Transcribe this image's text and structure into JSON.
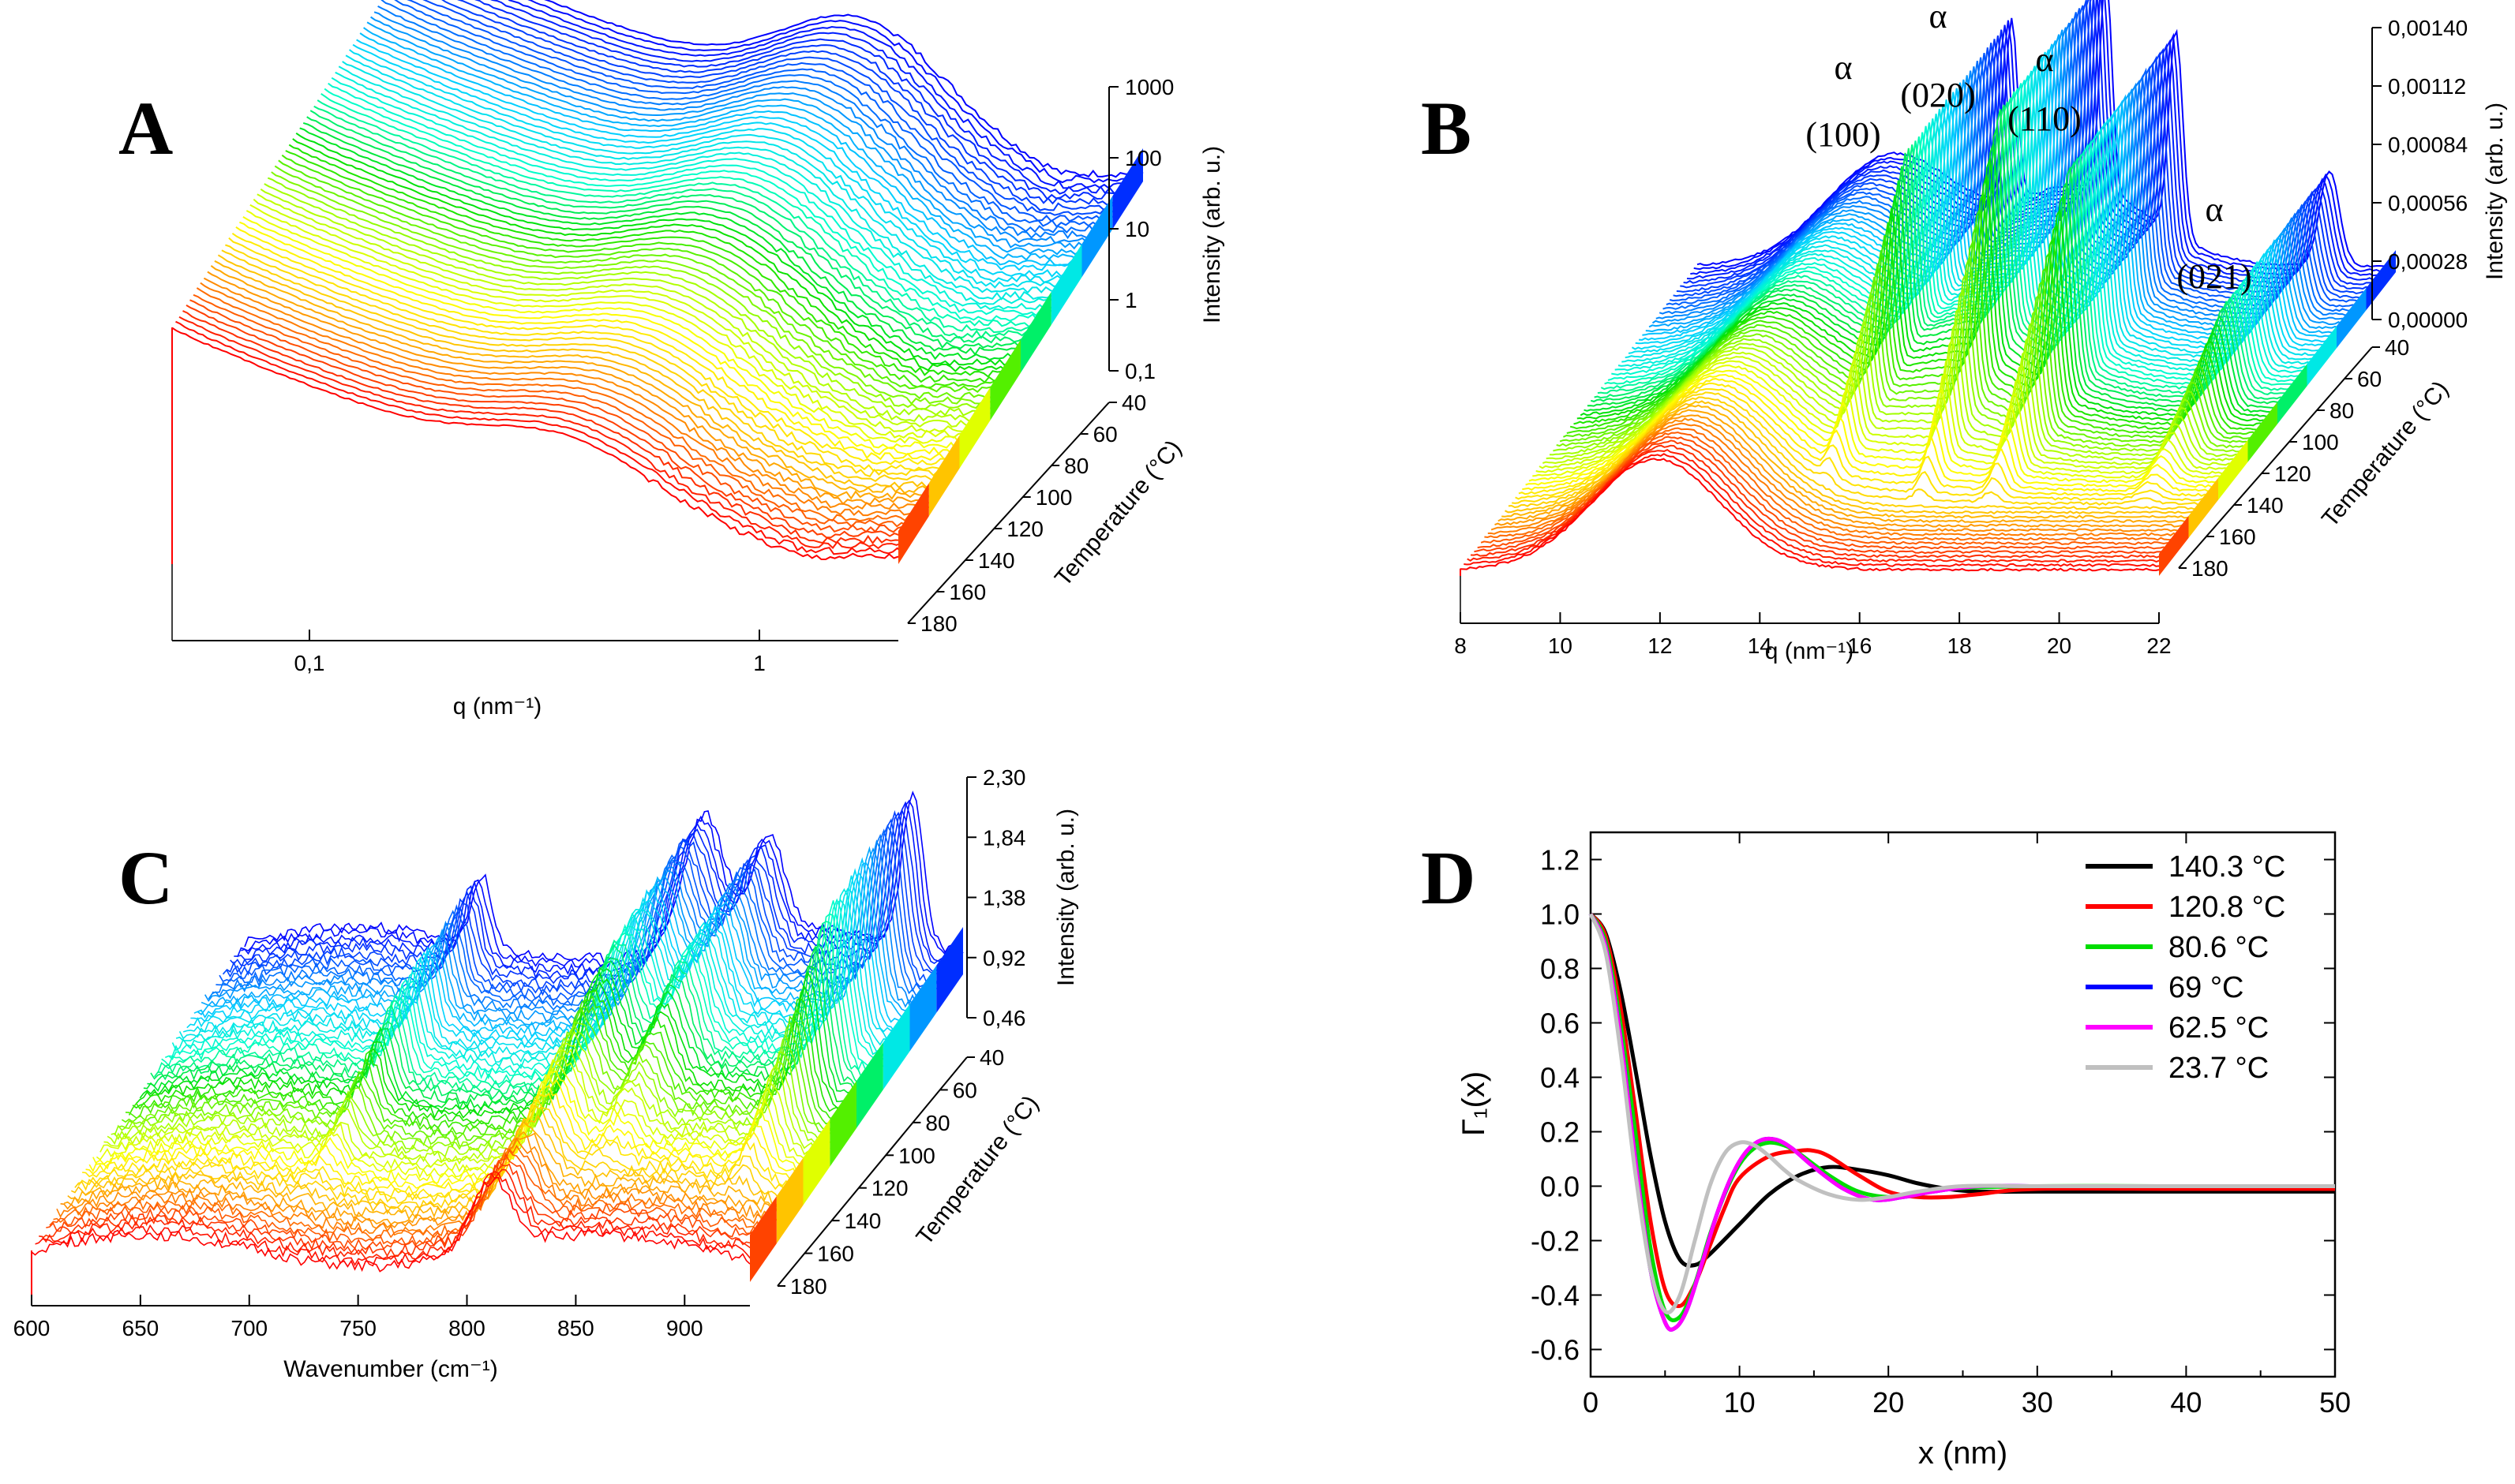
{
  "chart_data": [
    {
      "panel": "A",
      "type": "line",
      "title": "",
      "xlabel": "q (nm⁻¹)",
      "x_scale": "log",
      "x_ticks": [
        "0,1",
        "1"
      ],
      "zlabel": "Intensity (arb. u.)",
      "z_scale": "log",
      "z_ticks": [
        "0,1",
        "1",
        "10",
        "100",
        "1000"
      ],
      "ylabel": "Temperature (°C)",
      "y_ticks": [
        "40",
        "60",
        "80",
        "100",
        "120",
        "140",
        "160",
        "180"
      ],
      "temperature_range": [
        40,
        190
      ],
      "series_colors": [
        "#ff0000",
        "#ff8000",
        "#ffd200",
        "#ffff00",
        "#00e000",
        "#00ffff",
        "#00b4ff",
        "#0000ff"
      ]
    },
    {
      "panel": "B",
      "type": "line",
      "title": "",
      "xlabel": "q (nm⁻¹)",
      "x": [
        8,
        10,
        12,
        14,
        16,
        18,
        20,
        22
      ],
      "xlim": [
        8,
        22
      ],
      "zlabel": "Intensity (arb. u.)",
      "z_ticks": [
        "0,00000",
        "0,00028",
        "0,00056",
        "0,00084",
        "0,00112",
        "0,00140"
      ],
      "ylabel": "Temperature (°C)",
      "y_ticks": [
        "40",
        "60",
        "80",
        "100",
        "120",
        "140",
        "160",
        "180"
      ],
      "annotations": [
        {
          "greek": "α",
          "label": "(100)",
          "q": 15.0
        },
        {
          "greek": "α",
          "label": "(020)",
          "q": 17.0
        },
        {
          "greek": "α",
          "label": "(110)",
          "q": 18.5
        },
        {
          "greek": "α",
          "label": "(021)",
          "q": 21.0
        }
      ]
    },
    {
      "panel": "C",
      "type": "line",
      "title": "",
      "xlabel": "Wavenumber (cm⁻¹)",
      "x_ticks": [
        "600",
        "650",
        "700",
        "750",
        "800",
        "850",
        "900"
      ],
      "xlim": [
        600,
        930
      ],
      "zlabel": "Intensity (arb. u.)",
      "z_ticks": [
        "0,46",
        "0,92",
        "1,38",
        "1,84",
        "2,30"
      ],
      "ylabel": "Temperature (°C)",
      "y_ticks": [
        "40",
        "60",
        "80",
        "100",
        "120",
        "140",
        "160",
        "180"
      ]
    },
    {
      "panel": "D",
      "type": "line",
      "title": "",
      "xlabel": "x (nm)",
      "ylabel": "Γ₁(x)",
      "xlim": [
        0,
        50
      ],
      "ylim": [
        -0.7,
        1.3
      ],
      "x_ticks": [
        "0",
        "10",
        "20",
        "30",
        "40",
        "50"
      ],
      "y_ticks": [
        "1.2",
        "1.0",
        "0.8",
        "0.6",
        "0.4",
        "0.2",
        "0.0",
        "-0.2",
        "-0.4",
        "-0.6"
      ],
      "legend_position": "top-right",
      "series": [
        {
          "name": "140.3 °C",
          "color": "#000000",
          "x": [
            0,
            1,
            2,
            3,
            4,
            5,
            6,
            7,
            8,
            10,
            12,
            14,
            16,
            18,
            20,
            22,
            24,
            26,
            30,
            40,
            50
          ],
          "values": [
            1.0,
            0.93,
            0.72,
            0.43,
            0.12,
            -0.13,
            -0.27,
            -0.29,
            -0.25,
            -0.14,
            -0.03,
            0.04,
            0.07,
            0.06,
            0.04,
            0.01,
            -0.01,
            -0.02,
            -0.02,
            -0.02,
            -0.02
          ]
        },
        {
          "name": "120.8 °C",
          "color": "#ff0000",
          "x": [
            0,
            1,
            2,
            3,
            4,
            5,
            6,
            7,
            8,
            9,
            10,
            12,
            14,
            15,
            16,
            18,
            20,
            22,
            24,
            26,
            30,
            40,
            50
          ],
          "values": [
            1.0,
            0.92,
            0.66,
            0.28,
            -0.12,
            -0.38,
            -0.44,
            -0.36,
            -0.22,
            -0.08,
            0.03,
            0.11,
            0.13,
            0.13,
            0.11,
            0.04,
            -0.02,
            -0.04,
            -0.04,
            -0.03,
            -0.01,
            -0.01,
            -0.01
          ]
        },
        {
          "name": "80.6 °C",
          "color": "#00dd00",
          "x": [
            0,
            1,
            2,
            3,
            4,
            5,
            6,
            7,
            8,
            9,
            10,
            11,
            12,
            13,
            14,
            16,
            18,
            20,
            22,
            24,
            30,
            40,
            50
          ],
          "values": [
            1.0,
            0.9,
            0.6,
            0.2,
            -0.22,
            -0.46,
            -0.48,
            -0.36,
            -0.18,
            -0.03,
            0.08,
            0.14,
            0.16,
            0.15,
            0.12,
            0.04,
            -0.02,
            -0.04,
            -0.03,
            -0.01,
            0.0,
            0.0,
            0.0
          ]
        },
        {
          "name": "69 °C",
          "color": "#0000ff",
          "x": [
            0,
            1,
            2,
            3,
            4,
            5,
            5.7,
            6.5,
            7.5,
            8.5,
            9.5,
            10.5,
            11.5,
            12.5,
            13.5,
            15,
            17,
            19,
            21,
            23,
            26,
            30,
            40,
            50
          ],
          "values": [
            1.0,
            0.88,
            0.55,
            0.1,
            -0.3,
            -0.5,
            -0.52,
            -0.45,
            -0.28,
            -0.1,
            0.04,
            0.13,
            0.17,
            0.17,
            0.14,
            0.07,
            -0.01,
            -0.05,
            -0.04,
            -0.02,
            0.0,
            0.0,
            0.0,
            0.0
          ]
        },
        {
          "name": "62.5 °C",
          "color": "#ff00ff",
          "x": [
            0,
            1,
            2,
            3,
            4,
            5,
            5.7,
            6.5,
            7.5,
            8.5,
            9.5,
            10.5,
            11.5,
            12.5,
            13.5,
            15,
            17,
            19,
            21,
            23,
            26,
            30,
            40,
            50
          ],
          "values": [
            1.0,
            0.88,
            0.55,
            0.1,
            -0.3,
            -0.5,
            -0.52,
            -0.45,
            -0.28,
            -0.1,
            0.04,
            0.13,
            0.17,
            0.17,
            0.14,
            0.07,
            -0.01,
            -0.05,
            -0.04,
            -0.02,
            0.0,
            0.0,
            0.0,
            0.0
          ]
        },
        {
          "name": "23.7 °C",
          "color": "#c0c0c0",
          "x": [
            0,
            1,
            2,
            3,
            4,
            5,
            6,
            7,
            8,
            9,
            10,
            11,
            12,
            13,
            14,
            16,
            18,
            20,
            22,
            25,
            30,
            40,
            50
          ],
          "values": [
            1.0,
            0.86,
            0.5,
            0.05,
            -0.3,
            -0.46,
            -0.4,
            -0.2,
            0.0,
            0.12,
            0.16,
            0.15,
            0.11,
            0.06,
            0.02,
            -0.03,
            -0.05,
            -0.04,
            -0.02,
            0.0,
            0.0,
            0.0,
            0.0
          ]
        }
      ]
    }
  ]
}
